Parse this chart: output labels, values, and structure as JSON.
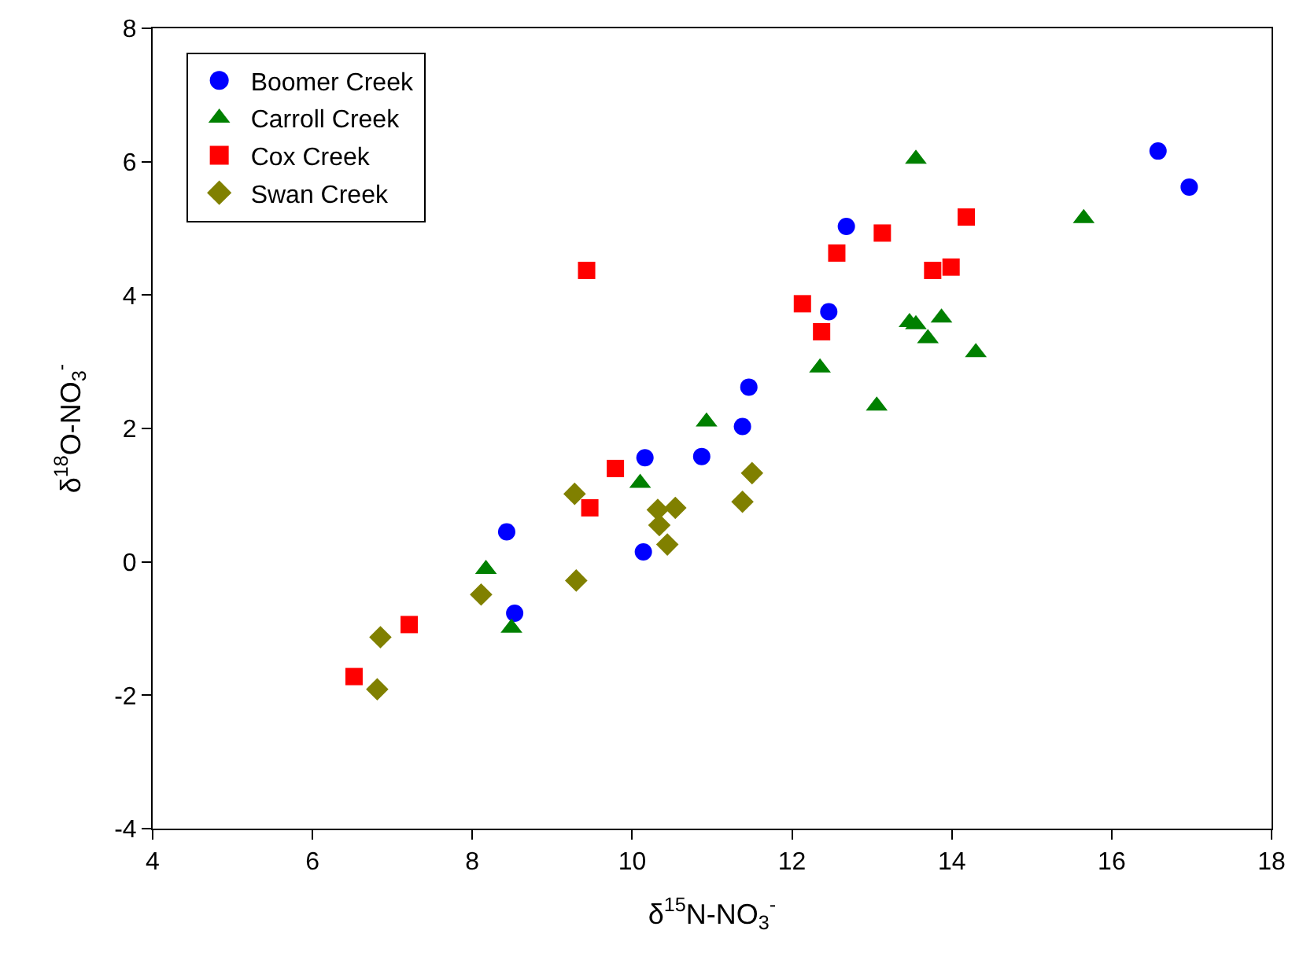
{
  "chart_data": {
    "type": "scatter",
    "xlabel": "δ$^{15}$N-NO$_{3}$$^{-}$",
    "ylabel": "δ$^{18}$O-NO$_{3}$$^{-}$",
    "xlim": [
      4,
      18
    ],
    "xticks": [
      4,
      6,
      8,
      10,
      12,
      14,
      16,
      18
    ],
    "ylim": [
      -4,
      8
    ],
    "yticks": [
      -4,
      -2,
      0,
      2,
      4,
      6,
      8
    ],
    "grid": false,
    "legend": "top left",
    "series": [
      {
        "name": "Boomer Creek",
        "color": "#0000ff",
        "marker": "circle",
        "x": [
          8.43,
          8.53,
          10.14,
          10.16,
          10.87,
          11.38,
          11.46,
          12.46,
          12.68,
          16.58,
          16.97
        ],
        "values": [
          0.45,
          -0.77,
          0.15,
          1.56,
          1.58,
          2.03,
          2.62,
          3.75,
          5.03,
          6.16,
          5.62
        ]
      },
      {
        "name": "Carroll Creek",
        "color": "#008000",
        "marker": "triangle",
        "x": [
          8.17,
          8.49,
          10.1,
          10.93,
          12.35,
          13.06,
          13.47,
          13.55,
          13.55,
          13.7,
          13.87,
          14.3,
          15.65
        ],
        "values": [
          -0.11,
          -0.99,
          1.18,
          2.1,
          2.91,
          2.34,
          3.59,
          6.04,
          3.56,
          3.35,
          3.66,
          3.14,
          5.15
        ]
      },
      {
        "name": "Cox Creek",
        "color": "#ff0000",
        "marker": "square",
        "x": [
          6.52,
          7.21,
          9.43,
          9.47,
          9.79,
          12.13,
          12.37,
          12.56,
          13.13,
          13.76,
          13.99,
          14.18
        ],
        "values": [
          -1.72,
          -0.94,
          4.37,
          0.81,
          1.4,
          3.87,
          3.45,
          4.63,
          4.93,
          4.37,
          4.42,
          5.17
        ]
      },
      {
        "name": "Swan Creek",
        "color": "#808000",
        "marker": "diamond",
        "x": [
          6.81,
          6.85,
          8.11,
          9.28,
          9.3,
          10.32,
          10.34,
          10.44,
          10.54,
          11.38,
          11.5
        ],
        "values": [
          -1.91,
          -1.13,
          -0.49,
          1.02,
          -0.28,
          0.78,
          0.55,
          0.26,
          0.81,
          0.9,
          1.33
        ]
      }
    ]
  }
}
